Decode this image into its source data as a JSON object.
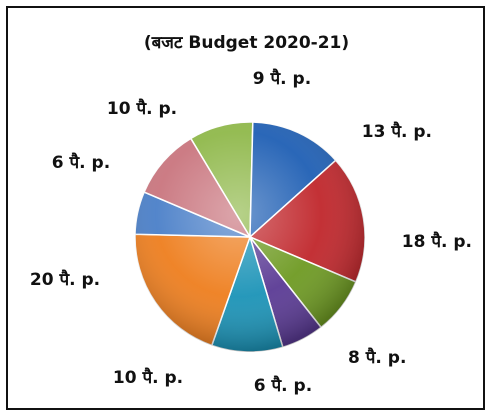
{
  "chart_data": {
    "type": "pie",
    "title": "(बजट Budget 2020-21)",
    "slices": [
      {
        "label": "9 पै. p.",
        "value": 9,
        "color": "#8fb84a"
      },
      {
        "label": "13 पै. p.",
        "value": 13,
        "color": "#1f5fb4"
      },
      {
        "label": "18 पै. p.",
        "value": 18,
        "color": "#c0262b"
      },
      {
        "label": "8 पै. p.",
        "value": 8,
        "color": "#6e9a22"
      },
      {
        "label": "6 पै. p.",
        "value": 6,
        "color": "#5a3a94"
      },
      {
        "label": "10 पै. p.",
        "value": 10,
        "color": "#1b93b7"
      },
      {
        "label": "20 पै. p.",
        "value": 20,
        "color": "#ee7e1e"
      },
      {
        "label": "6 पै. p.",
        "value": 6,
        "color": "#4a7fc8"
      },
      {
        "label": "10 पै. p.",
        "value": 10,
        "color": "#c9757e"
      }
    ]
  }
}
